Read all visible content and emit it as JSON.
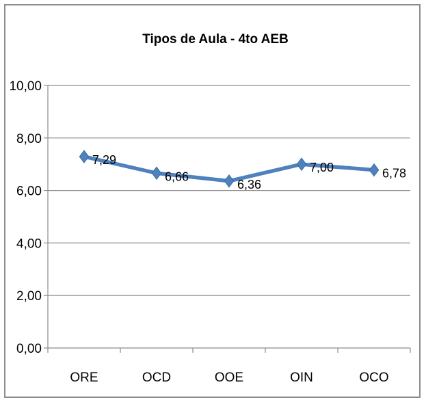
{
  "chart_data": {
    "type": "line",
    "title": "Tipos de Aula - 4to AEB",
    "categories": [
      "ORE",
      "OCD",
      "OOE",
      "OIN",
      "OCO"
    ],
    "series": [
      {
        "values": [
          7.29,
          6.66,
          6.36,
          7.0,
          6.78
        ],
        "data_labels": [
          "7,29",
          "6,66",
          "6,36",
          "7,00",
          "6,78"
        ]
      }
    ],
    "y_ticks": [
      0,
      2,
      4,
      6,
      8,
      10
    ],
    "y_tick_labels": [
      "0,00",
      "2,00",
      "4,00",
      "6,00",
      "8,00",
      "10,00"
    ],
    "ylim": [
      0,
      10
    ],
    "grid": true,
    "legend": "none",
    "line_color": "#4f81bd",
    "marker": "diamond",
    "xlabel": "",
    "ylabel": ""
  }
}
